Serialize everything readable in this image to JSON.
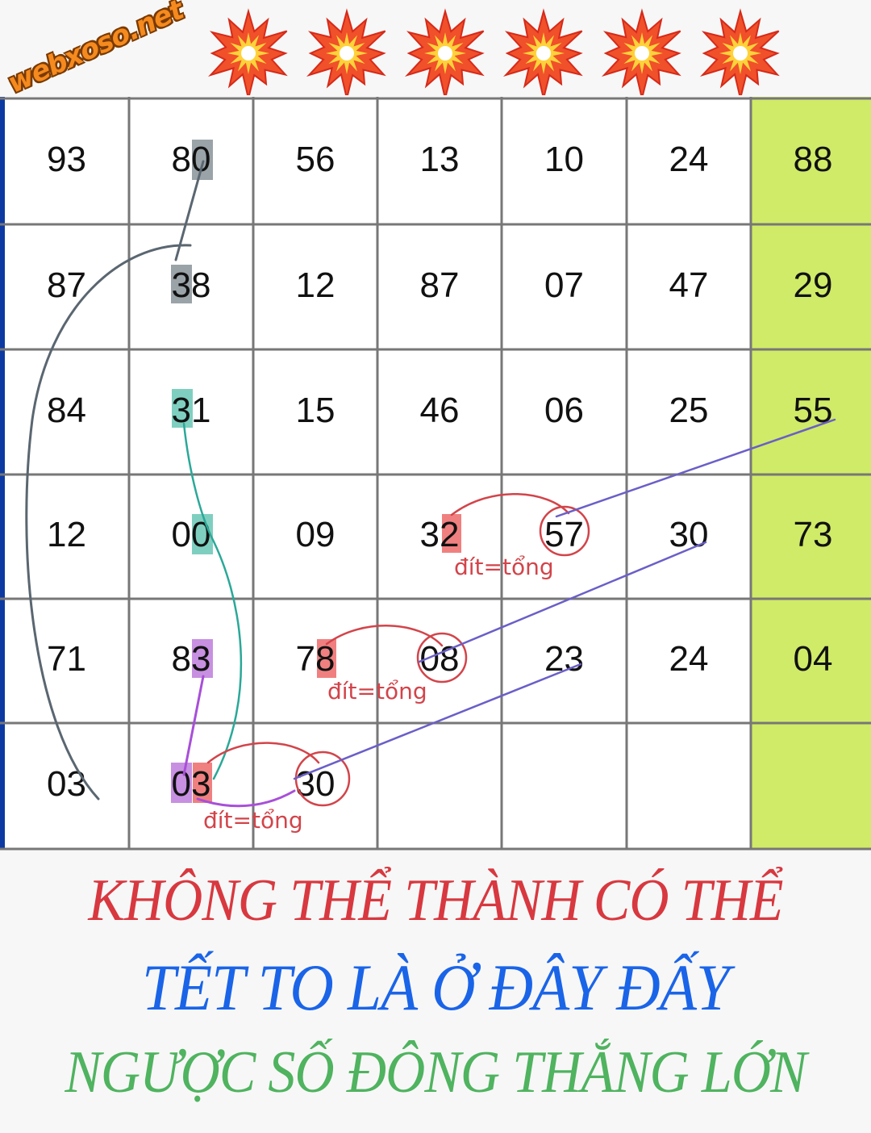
{
  "logo": {
    "text": "webxoso.net"
  },
  "header": {
    "icons": [
      "collision-icon",
      "collision-icon",
      "collision-icon",
      "collision-icon",
      "collision-icon",
      "collision-icon"
    ]
  },
  "grid": {
    "rows": [
      [
        "93",
        "80",
        "56",
        "13",
        "10",
        "24",
        "88"
      ],
      [
        "87",
        "38",
        "12",
        "87",
        "07",
        "47",
        "29"
      ],
      [
        "84",
        "31",
        "15",
        "46",
        "06",
        "25",
        "55"
      ],
      [
        "12",
        "00",
        "09",
        "32",
        "57",
        "30",
        "73"
      ],
      [
        "71",
        "83",
        "78",
        "08",
        "23",
        "24",
        "04"
      ],
      [
        "03",
        "03",
        "30",
        "",
        "",
        "",
        ""
      ]
    ],
    "highlight_column_color": "#d0eb67",
    "annotations": [
      "đít=tổng",
      "đít=tổng",
      "đít=tổng"
    ]
  },
  "colors": {
    "gray_mark": "#9aa3a8",
    "teal_mark": "#7fcfc0",
    "purple_mark": "#c890e0",
    "red_mark": "#f08080",
    "red_ink": "#d2444a",
    "blue_line": "#6a5fc8"
  },
  "slogans": [
    {
      "text": "KHÔNG THỂ THÀNH CÓ THỂ",
      "color": "#d8383f"
    },
    {
      "text": "TẾT TO LÀ Ở ĐÂY ĐẤY",
      "color": "#1a64e8"
    },
    {
      "text": "NGƯỢC SỐ ĐÔNG THẮNG LỚN",
      "color": "#4fb35f"
    }
  ]
}
